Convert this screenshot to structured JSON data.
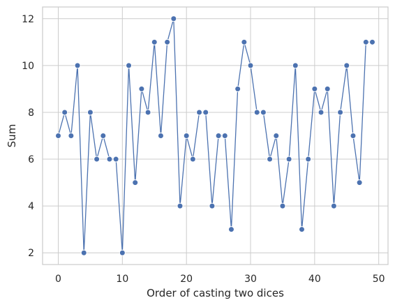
{
  "chart_data": {
    "type": "line",
    "xlabel": "Order of casting two dices",
    "ylabel": "Sum",
    "xlim": [
      -2.45,
      51.45
    ],
    "ylim": [
      1.5,
      12.5
    ],
    "xticks": [
      0,
      10,
      20,
      30,
      40,
      50
    ],
    "yticks": [
      2,
      4,
      6,
      8,
      10,
      12
    ],
    "grid": true,
    "markers": true,
    "series": [
      {
        "x": [
          0,
          1,
          2,
          3,
          4,
          5,
          6,
          7,
          8,
          9,
          10,
          11,
          12,
          13,
          14,
          15,
          16,
          17,
          18,
          19,
          20,
          21,
          22,
          23,
          24,
          25,
          26,
          27,
          28,
          29,
          30,
          31,
          32,
          33,
          34,
          35,
          36,
          37,
          38,
          39,
          40,
          41,
          42,
          43,
          44,
          45,
          46,
          47,
          48,
          49
        ],
        "values": [
          7,
          8,
          7,
          10,
          2,
          8,
          6,
          7,
          6,
          6,
          2,
          10,
          5,
          9,
          8,
          11,
          7,
          11,
          12,
          4,
          7,
          6,
          8,
          8,
          4,
          7,
          7,
          3,
          9,
          11,
          10,
          8,
          8,
          6,
          7,
          4,
          6,
          10,
          3,
          6,
          9,
          8,
          9,
          4,
          8,
          10,
          7,
          5,
          11,
          11
        ]
      }
    ]
  },
  "colors": {
    "line": "#4c72b0",
    "marker": "#4c72b0",
    "marker_edge": "#ffffff",
    "grid": "#cccccc",
    "spine": "#cccccc",
    "text": "#262626"
  }
}
